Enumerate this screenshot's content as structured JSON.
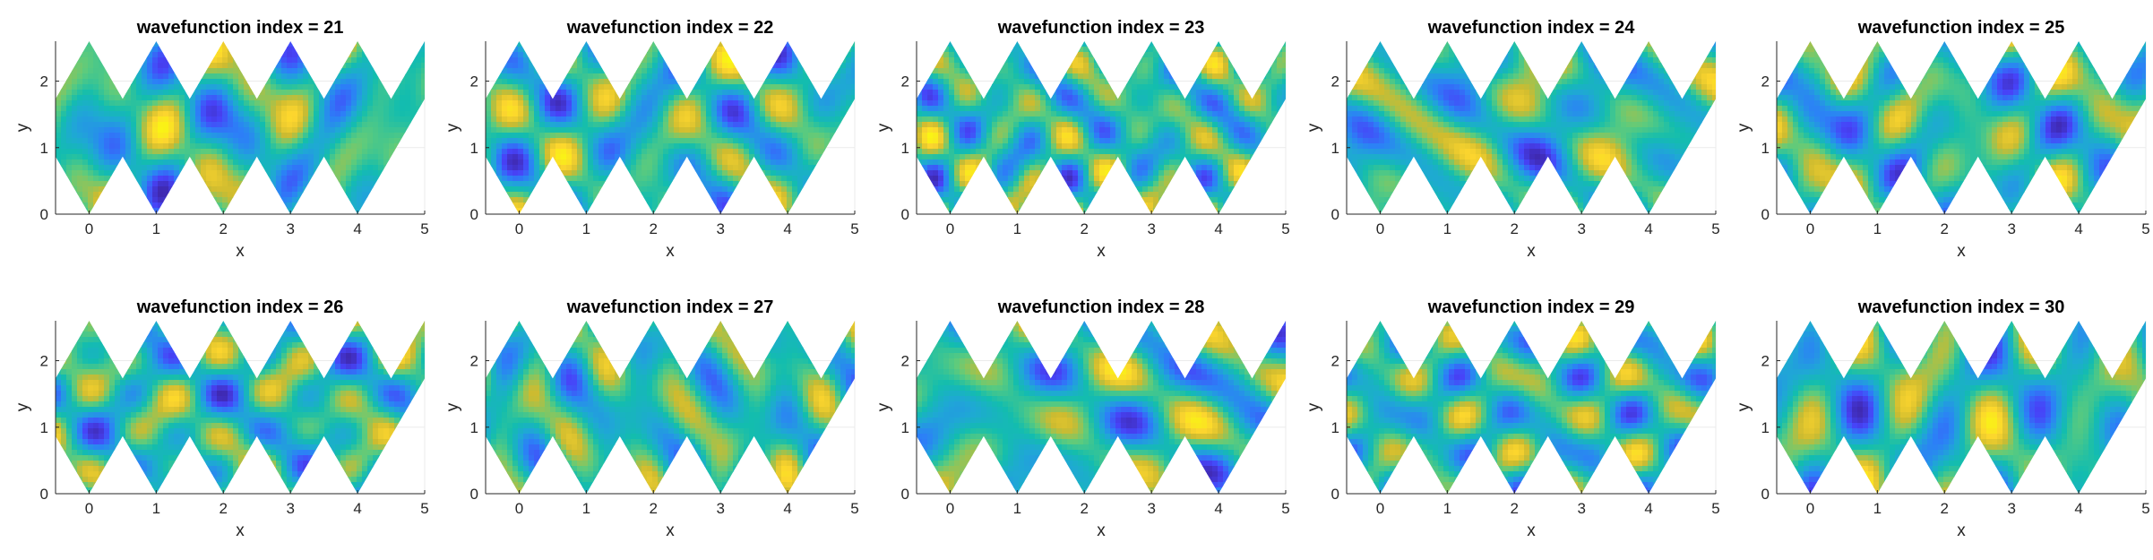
{
  "figure": {
    "colors": {
      "background": "#ffffff",
      "axis": "#262626",
      "grid": "#ebebeb",
      "colormap": [
        "#3e26a8",
        "#4743f8",
        "#2c80f7",
        "#1fa8d5",
        "#13bdae",
        "#5ecb7c",
        "#cebb2f",
        "#fcd52e",
        "#f9fb0e"
      ]
    }
  },
  "chart_data": [
    {
      "type": "heatmap",
      "title": "wavefunction index = 21",
      "xlabel": "x",
      "ylabel": "y",
      "xlim": [
        -0.5,
        5
      ],
      "ylim": [
        0,
        2.6
      ],
      "xticks": [
        "0",
        "1",
        "2",
        "3",
        "4",
        "5"
      ],
      "yticks": [
        "0",
        "1",
        "2"
      ],
      "grid": true,
      "colormap": "parula",
      "values_range": [
        -1,
        1
      ]
    },
    {
      "type": "heatmap",
      "title": "wavefunction index = 22",
      "xlabel": "x",
      "ylabel": "y",
      "xlim": [
        -0.5,
        5
      ],
      "ylim": [
        0,
        2.6
      ],
      "xticks": [
        "0",
        "1",
        "2",
        "3",
        "4",
        "5"
      ],
      "yticks": [
        "0",
        "1",
        "2"
      ],
      "grid": true,
      "colormap": "parula",
      "values_range": [
        -1,
        1
      ]
    },
    {
      "type": "heatmap",
      "title": "wavefunction index = 23",
      "xlabel": "x",
      "ylabel": "y",
      "xlim": [
        -0.5,
        5
      ],
      "ylim": [
        0,
        2.6
      ],
      "xticks": [
        "0",
        "1",
        "2",
        "3",
        "4",
        "5"
      ],
      "yticks": [
        "0",
        "1",
        "2"
      ],
      "grid": true,
      "colormap": "parula",
      "values_range": [
        -1,
        1
      ]
    },
    {
      "type": "heatmap",
      "title": "wavefunction index = 24",
      "xlabel": "x",
      "ylabel": "y",
      "xlim": [
        -0.5,
        5
      ],
      "ylim": [
        0,
        2.6
      ],
      "xticks": [
        "0",
        "1",
        "2",
        "3",
        "4",
        "5"
      ],
      "yticks": [
        "0",
        "1",
        "2"
      ],
      "grid": true,
      "colormap": "parula",
      "values_range": [
        -1,
        1
      ]
    },
    {
      "type": "heatmap",
      "title": "wavefunction index = 25",
      "xlabel": "x",
      "ylabel": "y",
      "xlim": [
        -0.5,
        5
      ],
      "ylim": [
        0,
        2.6
      ],
      "xticks": [
        "0",
        "1",
        "2",
        "3",
        "4",
        "5"
      ],
      "yticks": [
        "0",
        "1",
        "2"
      ],
      "grid": true,
      "colormap": "parula",
      "values_range": [
        -1,
        1
      ]
    },
    {
      "type": "heatmap",
      "title": "wavefunction index = 26",
      "xlabel": "x",
      "ylabel": "y",
      "xlim": [
        -0.5,
        5
      ],
      "ylim": [
        0,
        2.6
      ],
      "xticks": [
        "0",
        "1",
        "2",
        "3",
        "4",
        "5"
      ],
      "yticks": [
        "0",
        "1",
        "2"
      ],
      "grid": true,
      "colormap": "parula",
      "values_range": [
        -1,
        1
      ]
    },
    {
      "type": "heatmap",
      "title": "wavefunction index = 27",
      "xlabel": "x",
      "ylabel": "y",
      "xlim": [
        -0.5,
        5
      ],
      "ylim": [
        0,
        2.6
      ],
      "xticks": [
        "0",
        "1",
        "2",
        "3",
        "4",
        "5"
      ],
      "yticks": [
        "0",
        "1",
        "2"
      ],
      "grid": true,
      "colormap": "parula",
      "values_range": [
        -1,
        1
      ]
    },
    {
      "type": "heatmap",
      "title": "wavefunction index = 28",
      "xlabel": "x",
      "ylabel": "y",
      "xlim": [
        -0.5,
        5
      ],
      "ylim": [
        0,
        2.6
      ],
      "xticks": [
        "0",
        "1",
        "2",
        "3",
        "4",
        "5"
      ],
      "yticks": [
        "0",
        "1",
        "2"
      ],
      "grid": true,
      "colormap": "parula",
      "values_range": [
        -1,
        1
      ]
    },
    {
      "type": "heatmap",
      "title": "wavefunction index = 29",
      "xlabel": "x",
      "ylabel": "y",
      "xlim": [
        -0.5,
        5
      ],
      "ylim": [
        0,
        2.6
      ],
      "xticks": [
        "0",
        "1",
        "2",
        "3",
        "4",
        "5"
      ],
      "yticks": [
        "0",
        "1",
        "2"
      ],
      "grid": true,
      "colormap": "parula",
      "values_range": [
        -1,
        1
      ]
    },
    {
      "type": "heatmap",
      "title": "wavefunction index = 30",
      "xlabel": "x",
      "ylabel": "y",
      "xlim": [
        -0.5,
        5
      ],
      "ylim": [
        0,
        2.6
      ],
      "xticks": [
        "0",
        "1",
        "2",
        "3",
        "4",
        "5"
      ],
      "yticks": [
        "0",
        "1",
        "2"
      ],
      "grid": true,
      "colormap": "parula",
      "values_range": [
        -1,
        1
      ]
    }
  ]
}
